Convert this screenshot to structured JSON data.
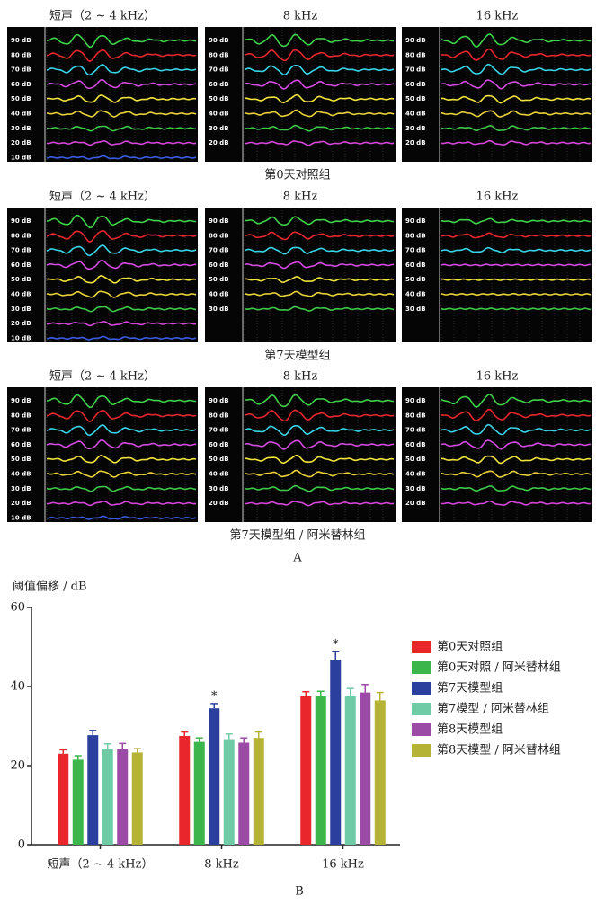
{
  "panel_a": {
    "label": "A",
    "rows": [
      {
        "caption": "第0天对照组",
        "columns": [
          {
            "title": "短声（2 ~ 4 kHz）",
            "levels": [
              "90 dB",
              "80 dB",
              "70 dB",
              "60 dB",
              "50 dB",
              "40 dB",
              "30 dB",
              "20 dB",
              "10 dB"
            ]
          },
          {
            "title": "8 kHz",
            "levels": [
              "90 dB",
              "80 dB",
              "70 dB",
              "60 dB",
              "50 dB",
              "40 dB",
              "30 dB",
              "20 dB"
            ]
          },
          {
            "title": "16 kHz",
            "levels": [
              "90 dB",
              "80 dB",
              "70 dB",
              "60 dB",
              "50 dB",
              "40 dB",
              "30 dB",
              "20 dB"
            ]
          }
        ]
      },
      {
        "caption": "第7天模型组",
        "columns": [
          {
            "title": "短声（2 ~ 4 kHz）",
            "levels": [
              "90 dB",
              "80 dB",
              "70 dB",
              "60 dB",
              "50 dB",
              "40 dB",
              "30 dB",
              "20 dB",
              "10 dB"
            ]
          },
          {
            "title": "8 kHz",
            "levels": [
              "90 dB",
              "80 dB",
              "70 dB",
              "60 dB",
              "50 dB",
              "40 dB",
              "30 dB"
            ]
          },
          {
            "title": "16 kHz",
            "levels": [
              "90 dB",
              "80 dB",
              "70 dB",
              "60 dB",
              "50 dB",
              "40 dB",
              "30 dB"
            ]
          }
        ]
      },
      {
        "caption": "第7天模型组 / 阿米替林组",
        "columns": [
          {
            "title": "短声（2 ~ 4 kHz）",
            "levels": [
              "90 dB",
              "80 dB",
              "70 dB",
              "60 dB",
              "50 dB",
              "40 dB",
              "30 dB",
              "20 dB",
              "10 dB"
            ]
          },
          {
            "title": "8 kHz",
            "levels": [
              "90 dB",
              "80 dB",
              "70 dB",
              "60 dB",
              "50 dB",
              "40 dB",
              "30 dB",
              "20 dB"
            ]
          },
          {
            "title": "16 kHz",
            "levels": [
              "90 dB",
              "80 dB",
              "70 dB",
              "60 dB",
              "50 dB",
              "40 dB",
              "30 dB",
              "20 dB"
            ]
          }
        ]
      }
    ]
  },
  "chart_data": {
    "type": "bar",
    "panel_label": "B",
    "y_label": "阈值偏移 / dB",
    "categories": [
      "短声（2 ~ 4 kHz）",
      "8 kHz",
      "16 kHz"
    ],
    "ylim": [
      0,
      60
    ],
    "yticks": [
      0,
      20,
      40,
      60
    ],
    "series": [
      {
        "name": "第0天对照组",
        "color": "#e8262b",
        "values": [
          23,
          27.5,
          37.5
        ],
        "errors": [
          1,
          1,
          1.2
        ]
      },
      {
        "name": "第0天对照 / 阿米替林组",
        "color": "#3cb54a",
        "values": [
          21.5,
          26,
          37.5
        ],
        "errors": [
          1,
          1,
          1.3
        ]
      },
      {
        "name": "第7天模型组",
        "color": "#2b3f9e",
        "values": [
          27.7,
          34.5,
          46.8
        ],
        "errors": [
          1.2,
          1.2,
          2
        ],
        "significance": [
          null,
          "*",
          "*"
        ]
      },
      {
        "name": "第7模型 / 阿米替林组",
        "color": "#6fcba6",
        "values": [
          24.3,
          26.7,
          37.5
        ],
        "errors": [
          1.2,
          1.3,
          2
        ]
      },
      {
        "name": "第8天模型组",
        "color": "#9b4aa6",
        "values": [
          24.3,
          25.8,
          38.5
        ],
        "errors": [
          1.3,
          1.2,
          2
        ]
      },
      {
        "name": "第8天模型 / 阿米替林组",
        "color": "#b5b336",
        "values": [
          23.3,
          27,
          36.5
        ],
        "errors": [
          1,
          1.5,
          2
        ]
      }
    ]
  }
}
